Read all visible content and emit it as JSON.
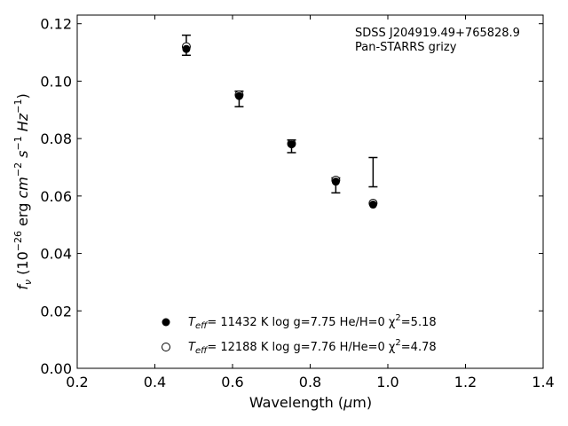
{
  "chart_data": {
    "type": "scatter",
    "xlabel": "Wavelength (μm)",
    "ylabel": "fν (10⁻²⁶ erg cm⁻² s⁻¹ Hz⁻¹)",
    "xlim": [
      0.2,
      1.4
    ],
    "ylim": [
      0.0,
      0.123
    ],
    "xticks": [
      0.2,
      0.4,
      0.6,
      0.8,
      1.0,
      1.2,
      1.4
    ],
    "xtick_labels": [
      "0.2",
      "0.4",
      "0.6",
      "0.8",
      "1.0",
      "1.2",
      "1.4"
    ],
    "yticks": [
      0.0,
      0.02,
      0.04,
      0.06,
      0.08,
      0.1,
      0.12
    ],
    "ytick_labels": [
      "0.00",
      "0.02",
      "0.04",
      "0.06",
      "0.08",
      "0.10",
      "0.12"
    ],
    "grid": false,
    "annotations": [
      "SDSS J204919.49+765828.9",
      "Pan-STARRS grizy"
    ],
    "observed": {
      "x": [
        0.481,
        0.617,
        0.752,
        0.866,
        0.962
      ],
      "y": [
        0.1125,
        0.0938,
        0.0773,
        0.0637,
        0.0683
      ],
      "yerr_low": [
        0.0035,
        0.0027,
        0.0022,
        0.0026,
        0.0051
      ],
      "yerr_high": [
        0.0035,
        0.0027,
        0.0022,
        0.0026,
        0.0051
      ]
    },
    "series": [
      {
        "name": "Teff= 11432 K  log g=7.75  He/H=0  χ²=5.18",
        "marker": "filled-circle",
        "x": [
          0.481,
          0.617,
          0.752,
          0.866,
          0.962
        ],
        "y": [
          0.1112,
          0.0948,
          0.078,
          0.065,
          0.057
        ]
      },
      {
        "name": "Teff= 12188 K  log g=7.76  H/He=0  χ²=4.78",
        "marker": "open-circle",
        "x": [
          0.481,
          0.617,
          0.752,
          0.866,
          0.962
        ],
        "y": [
          0.112,
          0.0952,
          0.0782,
          0.0655,
          0.0575
        ]
      }
    ],
    "legend": {
      "placement": "lower-center",
      "entries": [
        {
          "pre": "T",
          "sub": "eff",
          "text": "= 11432 K  log g=7.75  He/H=0  χ",
          "sup": "2",
          "post": "=5.18"
        },
        {
          "pre": "T",
          "sub": "eff",
          "text": "= 12188 K  log g=7.76  H/He=0  χ",
          "sup": "2",
          "post": "=4.78"
        }
      ]
    },
    "colors": {
      "marker": "#000000",
      "axes": "#000000"
    }
  }
}
